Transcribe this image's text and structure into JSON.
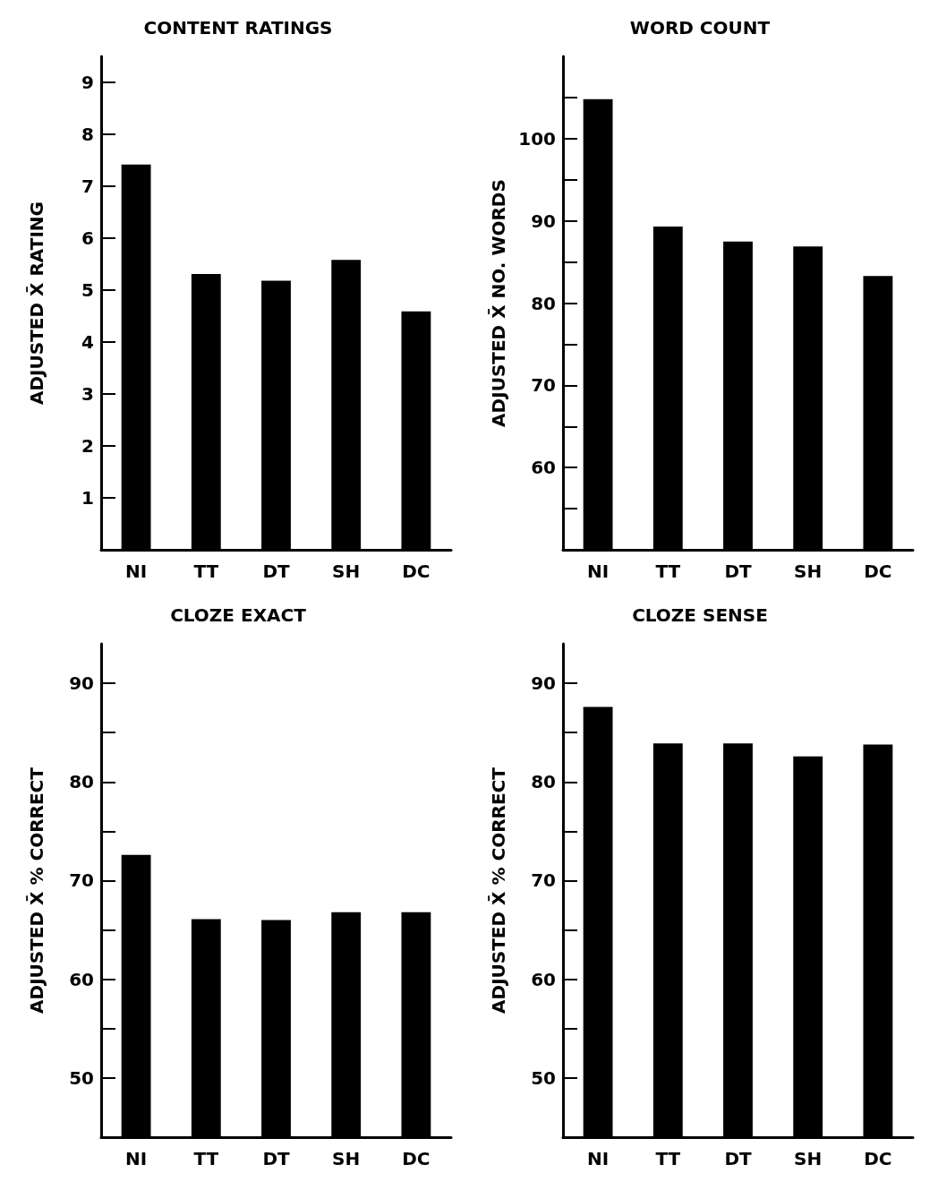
{
  "chart_data": [
    {
      "type": "bar",
      "title": "CONTENT RATINGS",
      "ylabel": "ADJUSTED X̄ RATING",
      "categories": [
        "NI",
        "TT",
        "DT",
        "SH",
        "DC"
      ],
      "values": [
        7.42,
        5.31,
        5.18,
        5.58,
        4.59
      ],
      "color": "#000000",
      "ylim": [
        0,
        9.5
      ],
      "yticks": [
        1,
        2,
        3,
        4,
        5,
        6,
        7,
        8,
        9
      ],
      "grid": false
    },
    {
      "type": "bar",
      "title": "WORD COUNT",
      "ylabel": "ADJUSTED X̄ NO. WORDS",
      "categories": [
        "NI",
        "TT",
        "DT",
        "SH",
        "DC"
      ],
      "values": [
        104.8,
        89.3,
        87.5,
        86.9,
        83.3
      ],
      "color": "#000000",
      "ylim": [
        50,
        110
      ],
      "yticks": [
        {
          "value": 55,
          "label": null
        },
        60,
        {
          "value": 65,
          "label": null
        },
        70,
        {
          "value": 75,
          "label": null
        },
        80,
        {
          "value": 85,
          "label": null
        },
        90,
        {
          "value": 95,
          "label": null
        },
        100,
        {
          "value": 105,
          "label": null
        }
      ],
      "grid": false
    },
    {
      "type": "bar",
      "title": "CLOZE EXACT",
      "ylabel": "ADJUSTED X̄ % CORRECT",
      "categories": [
        "NI",
        "TT",
        "DT",
        "SH",
        "DC"
      ],
      "values": [
        72.6,
        66.1,
        66.0,
        66.8,
        66.8
      ],
      "color": "#000000",
      "ylim": [
        44,
        94
      ],
      "yticks": [
        50,
        {
          "value": 55,
          "label": null
        },
        60,
        {
          "value": 65,
          "label": null
        },
        70,
        {
          "value": 75,
          "label": null
        },
        80,
        {
          "value": 85,
          "label": null
        },
        90
      ],
      "grid": false
    },
    {
      "type": "bar",
      "title": "CLOZE SENSE",
      "ylabel": "ADJUSTED X̄ % CORRECT",
      "categories": [
        "NI",
        "TT",
        "DT",
        "SH",
        "DC"
      ],
      "values": [
        87.6,
        83.9,
        83.9,
        82.6,
        83.8
      ],
      "color": "#000000",
      "ylim": [
        44,
        94
      ],
      "yticks": [
        50,
        {
          "value": 55,
          "label": null
        },
        60,
        {
          "value": 65,
          "label": null
        },
        70,
        {
          "value": 75,
          "label": null
        },
        80,
        {
          "value": 85,
          "label": null
        },
        90
      ],
      "grid": false
    }
  ]
}
